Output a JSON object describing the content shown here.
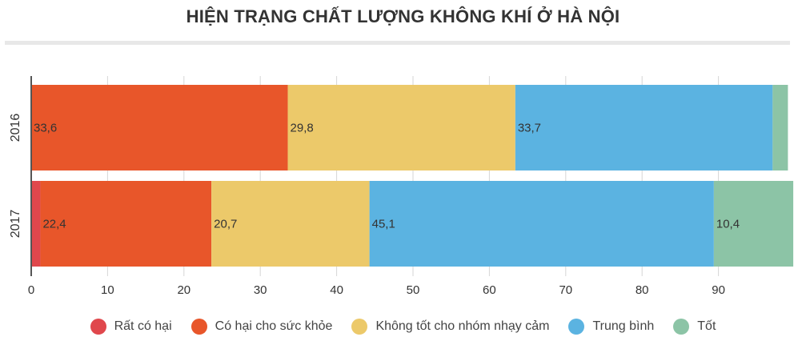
{
  "title": "HIỆN TRẠNG CHẤT LƯỢNG KHÔNG KHÍ Ở HÀ NỘI",
  "chart_data": {
    "type": "bar",
    "orientation": "horizontal",
    "stacked": true,
    "categories": [
      "2016",
      "2017"
    ],
    "series": [
      {
        "name": "Rất có hại",
        "color": "#e0474c",
        "values": [
          0,
          1.2
        ],
        "labels": [
          "",
          ""
        ]
      },
      {
        "name": "Có hại cho sức khỏe",
        "color": "#e8562a",
        "values": [
          33.6,
          22.4
        ],
        "labels": [
          "33,6",
          "22,4"
        ]
      },
      {
        "name": "Không tốt cho nhóm nhạy cảm",
        "color": "#ecc96a",
        "values": [
          29.8,
          20.7
        ],
        "labels": [
          "29,8",
          "20,7"
        ]
      },
      {
        "name": "Trung bình",
        "color": "#5bb3e1",
        "values": [
          33.7,
          45.1
        ],
        "labels": [
          "33,7",
          "45,1"
        ]
      },
      {
        "name": "Tốt",
        "color": "#8cc4a6",
        "values": [
          2.0,
          10.4
        ],
        "labels": [
          "",
          "10,4"
        ]
      }
    ],
    "xticks": [
      0,
      10,
      20,
      30,
      40,
      50,
      60,
      70,
      80,
      90
    ],
    "xlim": [
      0,
      100
    ],
    "grid": true,
    "legend_position": "bottom"
  }
}
